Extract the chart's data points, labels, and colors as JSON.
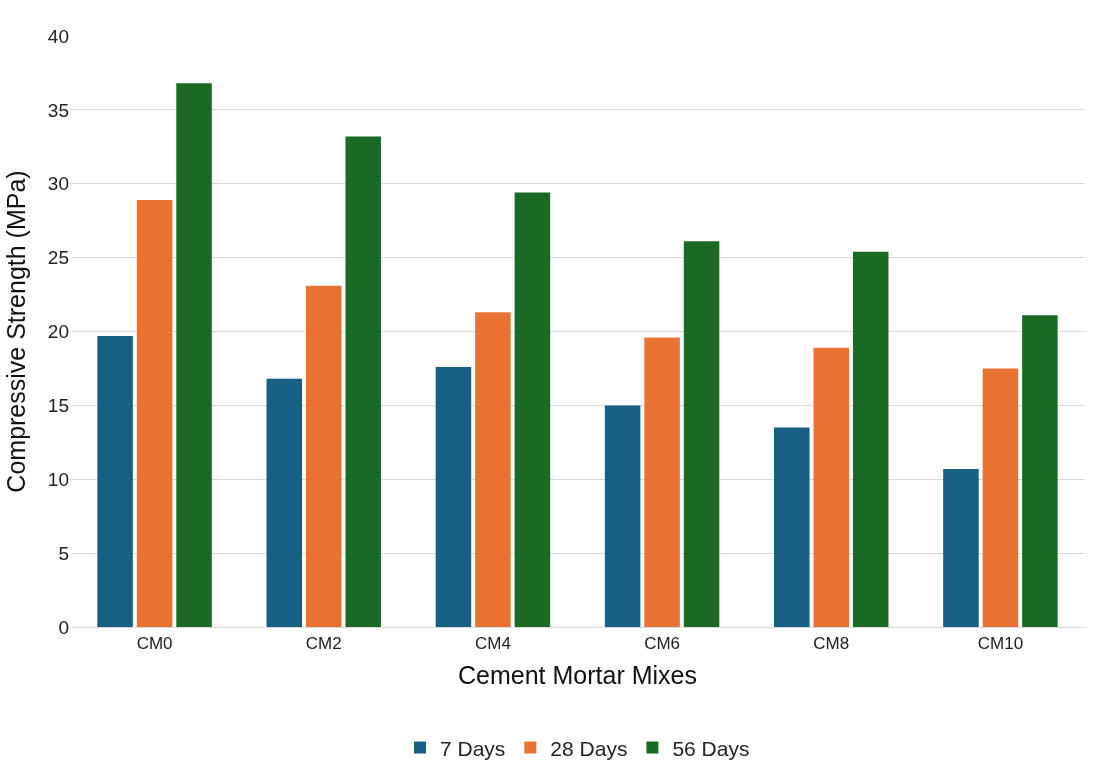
{
  "chart_data": {
    "type": "bar",
    "xlabel": "Cement Mortar Mixes",
    "ylabel": "Compressive Strength (MPa)",
    "categories": [
      "CM0",
      "CM2",
      "CM4",
      "CM6",
      "CM8",
      "CM10"
    ],
    "series": [
      {
        "name": "7 Days",
        "color": "#176083",
        "values": [
          19.7,
          16.8,
          17.6,
          15.0,
          13.5,
          10.7
        ]
      },
      {
        "name": "28 Days",
        "color": "#e97132",
        "values": [
          28.9,
          23.1,
          21.3,
          19.6,
          18.9,
          17.5
        ]
      },
      {
        "name": "56 Days",
        "color": "#1b6a24",
        "values": [
          36.8,
          33.2,
          29.4,
          26.1,
          25.4,
          21.1
        ]
      }
    ],
    "ylim": [
      0,
      40
    ],
    "yticks": [
      0,
      5,
      10,
      15,
      20,
      25,
      30,
      35,
      40
    ],
    "grid": "y",
    "legend": "bottom"
  }
}
